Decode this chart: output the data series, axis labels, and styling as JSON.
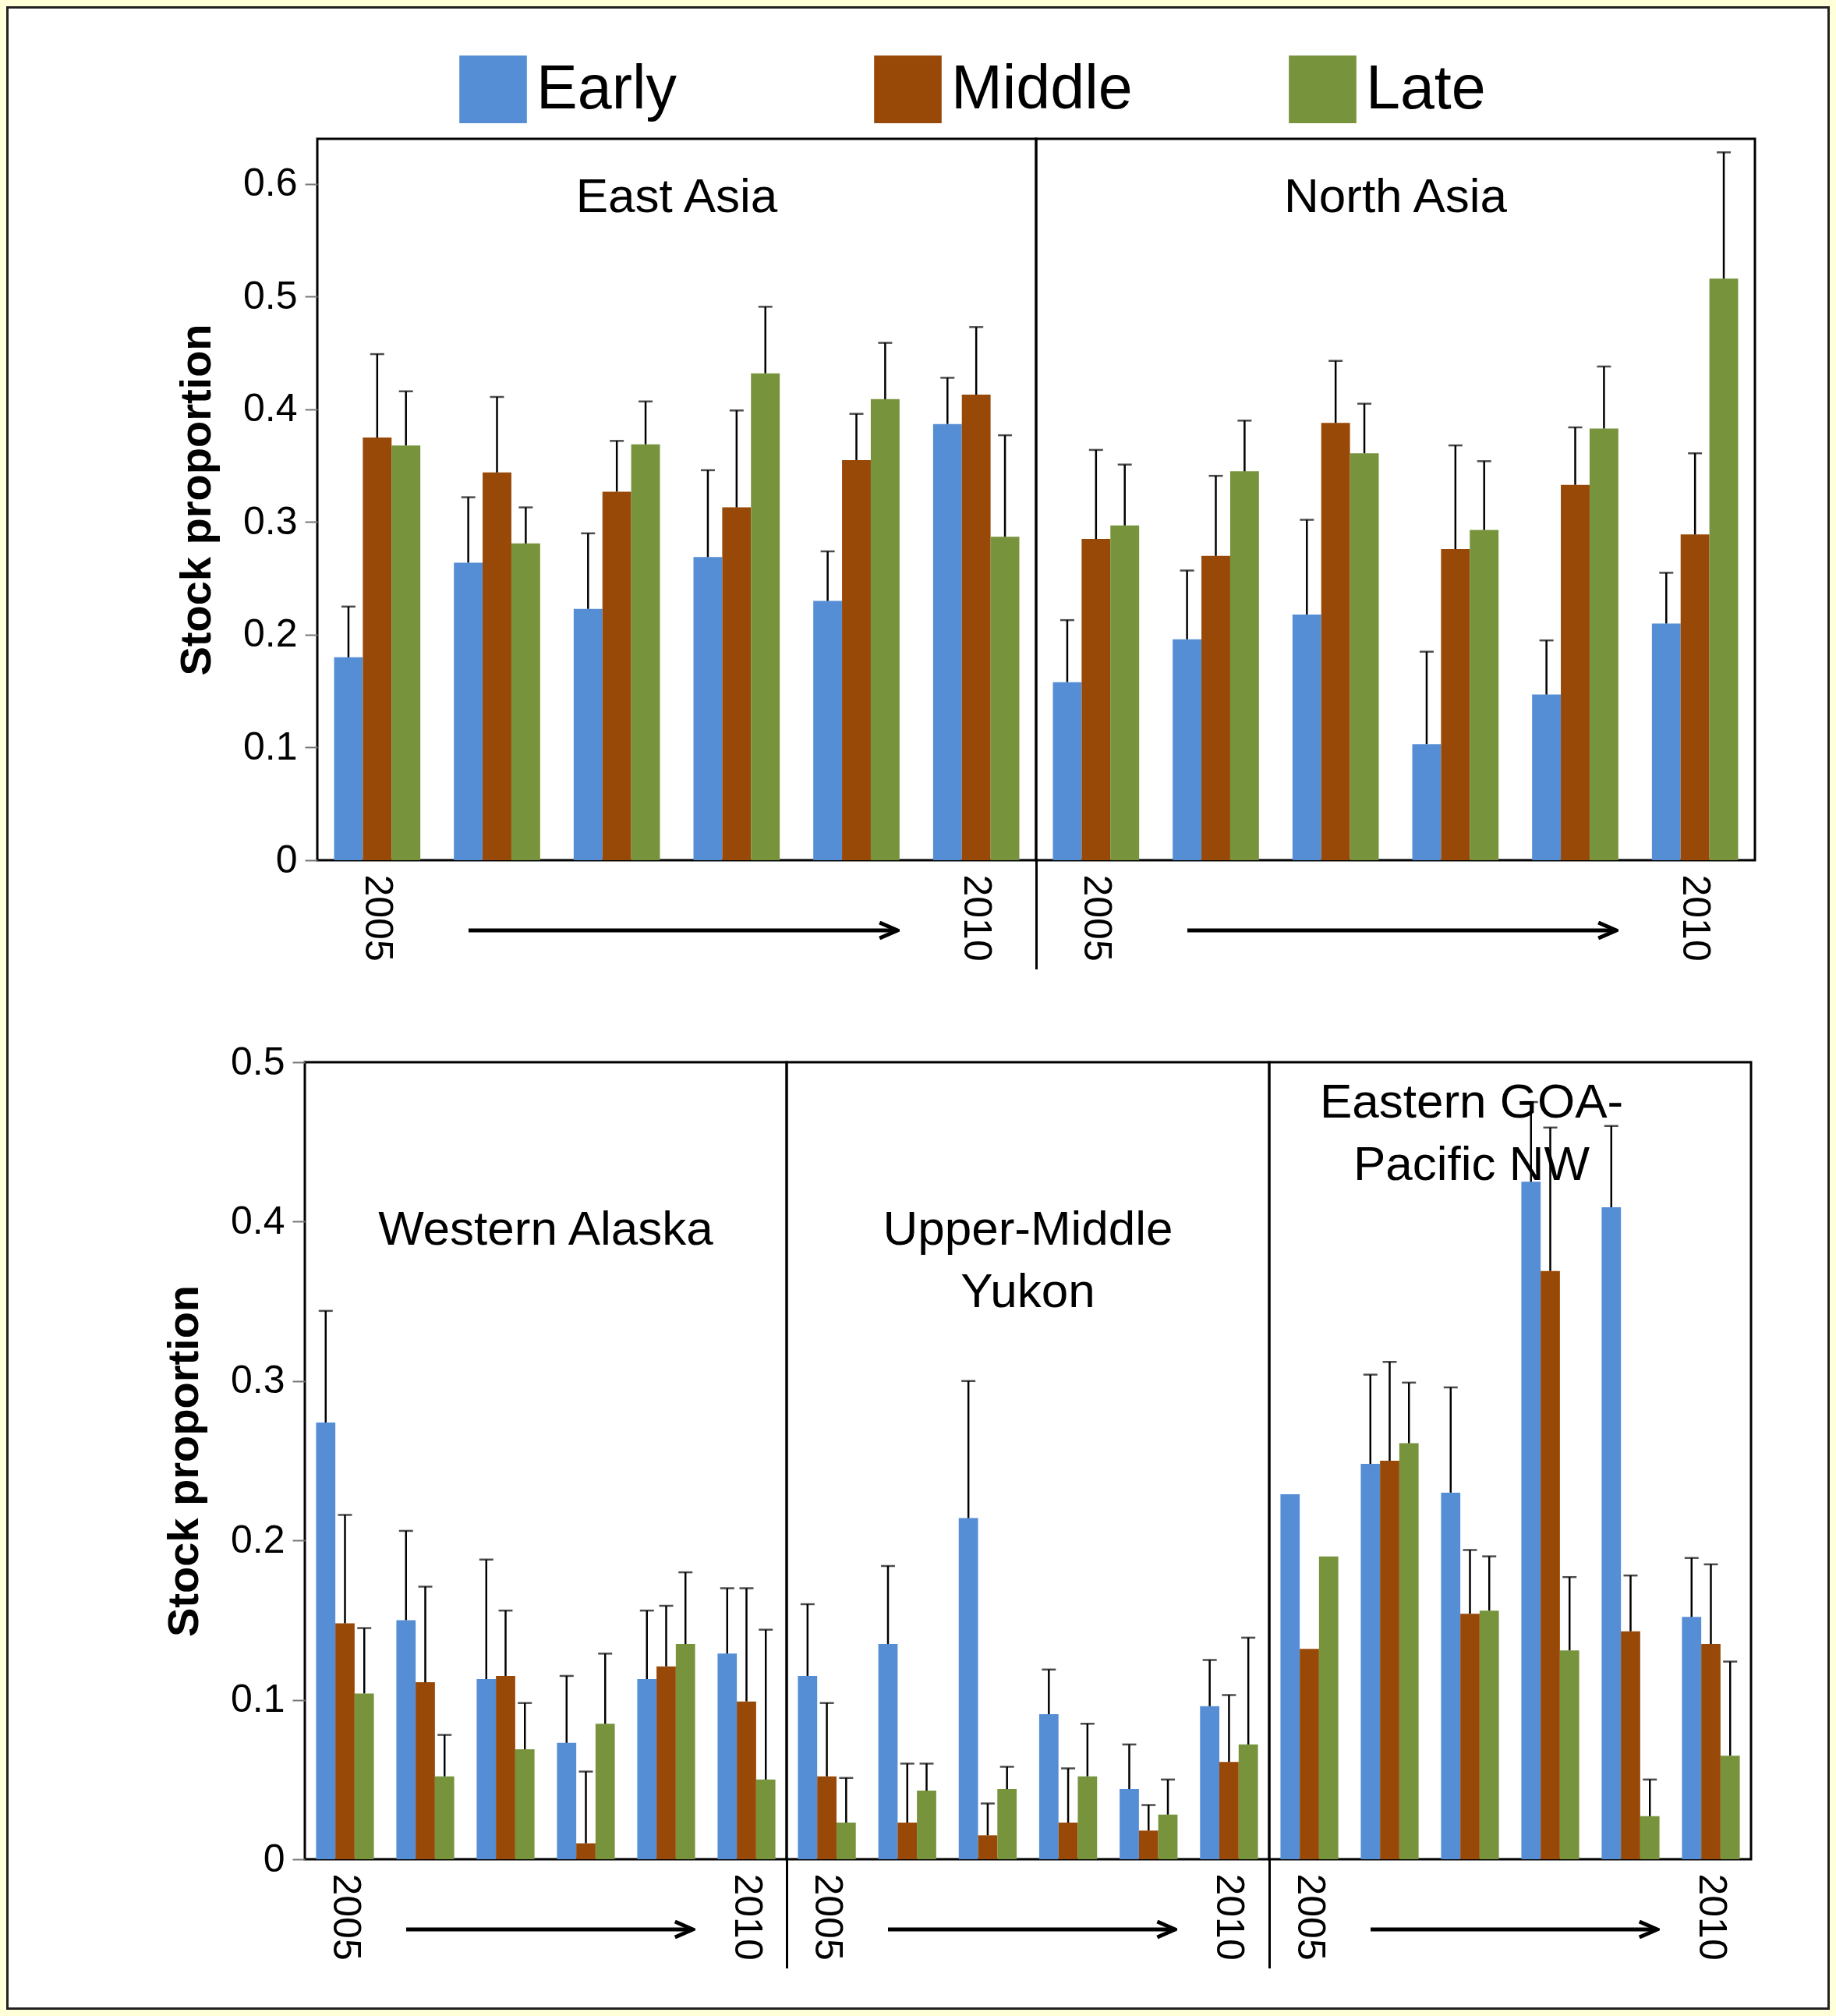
{
  "chart_data": [
    {
      "type": "bar",
      "title": "East Asia",
      "ylabel": "Stock proportion",
      "categories": [
        "2005",
        null,
        null,
        null,
        null,
        "2010"
      ],
      "ylim": [
        0,
        0.64
      ],
      "yticks": [
        0,
        0.1,
        0.2,
        0.3,
        0.4,
        0.5,
        0.6
      ],
      "legend": "top",
      "grid": false,
      "series": [
        {
          "name": "Early",
          "color": "#558ed5",
          "values": [
            0.18,
            0.264,
            0.223,
            0.269,
            0.23,
            0.387
          ],
          "errors": [
            [
              0.18,
              0.225
            ],
            [
              0.264,
              0.322
            ],
            [
              0.223,
              0.29
            ],
            [
              0.269,
              0.346
            ],
            [
              0.23,
              0.274
            ],
            [
              0.387,
              0.428
            ]
          ]
        },
        {
          "name": "Middle",
          "color": "#984807",
          "values": [
            0.375,
            0.344,
            0.327,
            0.313,
            0.355,
            0.413
          ],
          "errors": [
            [
              0.375,
              0.449
            ],
            [
              0.344,
              0.411
            ],
            [
              0.327,
              0.372
            ],
            [
              0.313,
              0.399
            ],
            [
              0.355,
              0.396
            ],
            [
              0.413,
              0.473
            ]
          ]
        },
        {
          "name": "Late",
          "color": "#77933c",
          "values": [
            0.368,
            0.281,
            0.369,
            0.432,
            0.409,
            0.287
          ],
          "errors": [
            [
              0.368,
              0.416
            ],
            [
              0.281,
              0.313
            ],
            [
              0.369,
              0.407
            ],
            [
              0.432,
              0.491
            ],
            [
              0.409,
              0.459
            ],
            [
              0.287,
              0.377
            ]
          ]
        }
      ]
    },
    {
      "type": "bar",
      "title": "North Asia",
      "categories": [
        "2005",
        null,
        null,
        null,
        null,
        "2010"
      ],
      "ylim": [
        0,
        0.64
      ],
      "yticks": [
        0,
        0.1,
        0.2,
        0.3,
        0.4,
        0.5,
        0.6
      ],
      "tick_labels": "x",
      "grid": false,
      "series": [
        {
          "color": "#558ed5",
          "values": [
            0.158,
            0.196,
            0.218,
            0.103,
            0.147,
            0.21
          ],
          "errors": [
            [
              0.158,
              0.213
            ],
            [
              0.196,
              0.257
            ],
            [
              0.218,
              0.302
            ],
            [
              0.103,
              0.185
            ],
            [
              0.147,
              0.195
            ],
            [
              0.21,
              0.255
            ]
          ]
        },
        {
          "color": "#984807",
          "values": [
            0.285,
            0.27,
            0.388,
            0.276,
            0.333,
            0.289
          ],
          "errors": [
            [
              0.285,
              0.364
            ],
            [
              0.27,
              0.341
            ],
            [
              0.388,
              0.443
            ],
            [
              0.276,
              0.368
            ],
            [
              0.333,
              0.384
            ],
            [
              0.289,
              0.361
            ]
          ]
        },
        {
          "color": "#77933c",
          "values": [
            0.297,
            0.345,
            0.361,
            0.293,
            0.383,
            0.516
          ],
          "errors": [
            [
              0.297,
              0.351
            ],
            [
              0.345,
              0.39
            ],
            [
              0.361,
              0.405
            ],
            [
              0.293,
              0.354
            ],
            [
              0.383,
              0.438
            ],
            [
              0.516,
              0.628
            ]
          ]
        }
      ]
    },
    {
      "type": "bar",
      "title": "Western Alaska",
      "ylabel": "Stock proportion",
      "categories": [
        "2005",
        null,
        null,
        null,
        null,
        "2010"
      ],
      "ylim": [
        0,
        0.5
      ],
      "yticks": [
        0,
        0.1,
        0.2,
        0.3,
        0.4,
        0.5
      ],
      "grid": false,
      "series": [
        {
          "color": "#558ed5",
          "values": [
            0.274,
            0.15,
            0.113,
            0.073,
            0.113,
            0.129
          ],
          "errors": [
            [
              0.274,
              0.344
            ],
            [
              0.15,
              0.206
            ],
            [
              0.113,
              0.188
            ],
            [
              0.073,
              0.115
            ],
            [
              0.113,
              0.156
            ],
            [
              0.129,
              0.17
            ]
          ]
        },
        {
          "color": "#984807",
          "values": [
            0.148,
            0.111,
            0.115,
            0.01,
            0.121,
            0.099
          ],
          "errors": [
            [
              0.148,
              0.216
            ],
            [
              0.111,
              0.171
            ],
            [
              0.115,
              0.156
            ],
            [
              0.01,
              0.055
            ],
            [
              0.121,
              0.159
            ],
            [
              0.099,
              0.17
            ]
          ]
        },
        {
          "color": "#77933c",
          "values": [
            0.104,
            0.052,
            0.069,
            0.085,
            0.135,
            0.05
          ],
          "errors": [
            [
              0.104,
              0.145
            ],
            [
              0.052,
              0.078
            ],
            [
              0.069,
              0.098
            ],
            [
              0.085,
              0.129
            ],
            [
              0.135,
              0.18
            ],
            [
              0.05,
              0.144
            ]
          ]
        }
      ]
    },
    {
      "type": "bar",
      "title": "Upper-Middle\nYukon",
      "categories": [
        "2005",
        null,
        null,
        null,
        null,
        "2010"
      ],
      "ylim": [
        0,
        0.5
      ],
      "yticks": [
        0,
        0.1,
        0.2,
        0.3,
        0.4,
        0.5
      ],
      "tick_labels": "x",
      "grid": false,
      "series": [
        {
          "color": "#558ed5",
          "values": [
            0.115,
            0.135,
            0.214,
            0.091,
            0.044,
            0.096
          ],
          "errors": [
            [
              0.115,
              0.16
            ],
            [
              0.135,
              0.184
            ],
            [
              0.214,
              0.3
            ],
            [
              0.091,
              0.119
            ],
            [
              0.044,
              0.072
            ],
            [
              0.096,
              0.125
            ]
          ]
        },
        {
          "color": "#984807",
          "values": [
            0.052,
            0.023,
            0.015,
            0.023,
            0.018,
            0.061
          ],
          "errors": [
            [
              0.052,
              0.098
            ],
            [
              0.023,
              0.06
            ],
            [
              0.015,
              0.035
            ],
            [
              0.023,
              0.057
            ],
            [
              0.018,
              0.034
            ],
            [
              0.061,
              0.103
            ]
          ]
        },
        {
          "color": "#77933c",
          "values": [
            0.023,
            0.043,
            0.044,
            0.052,
            0.028,
            0.072
          ],
          "errors": [
            [
              0.023,
              0.051
            ],
            [
              0.043,
              0.06
            ],
            [
              0.044,
              0.058
            ],
            [
              0.052,
              0.085
            ],
            [
              0.028,
              0.05
            ],
            [
              0.072,
              0.139
            ]
          ]
        }
      ]
    },
    {
      "type": "bar",
      "title": "Eastern GOA-\nPacific NW",
      "categories": [
        "2005",
        null,
        null,
        null,
        null,
        "2010"
      ],
      "ylim": [
        0,
        0.5
      ],
      "yticks": [
        0,
        0.1,
        0.2,
        0.3,
        0.4,
        0.5
      ],
      "tick_labels": "x",
      "grid": false,
      "series": [
        {
          "color": "#558ed5",
          "values": [
            0.229,
            0.248,
            0.23,
            0.425,
            0.409,
            0.152
          ],
          "errors": [
            null,
            [
              0.248,
              0.304
            ],
            [
              0.23,
              0.296
            ],
            [
              0.425,
              0.475
            ],
            [
              0.409,
              0.46
            ],
            [
              0.152,
              0.189
            ]
          ]
        },
        {
          "color": "#984807",
          "values": [
            0.132,
            0.25,
            0.154,
            0.369,
            0.143,
            0.135
          ],
          "errors": [
            null,
            [
              0.25,
              0.312
            ],
            [
              0.154,
              0.194
            ],
            [
              0.369,
              0.459
            ],
            [
              0.143,
              0.178
            ],
            [
              0.135,
              0.185
            ]
          ]
        },
        {
          "color": "#77933c",
          "values": [
            0.19,
            0.261,
            0.156,
            0.131,
            0.027,
            0.065
          ],
          "errors": [
            null,
            [
              0.261,
              0.299
            ],
            [
              0.156,
              0.19
            ],
            [
              0.131,
              0.177
            ],
            [
              0.027,
              0.05
            ],
            [
              0.065,
              0.124
            ]
          ]
        }
      ]
    }
  ]
}
